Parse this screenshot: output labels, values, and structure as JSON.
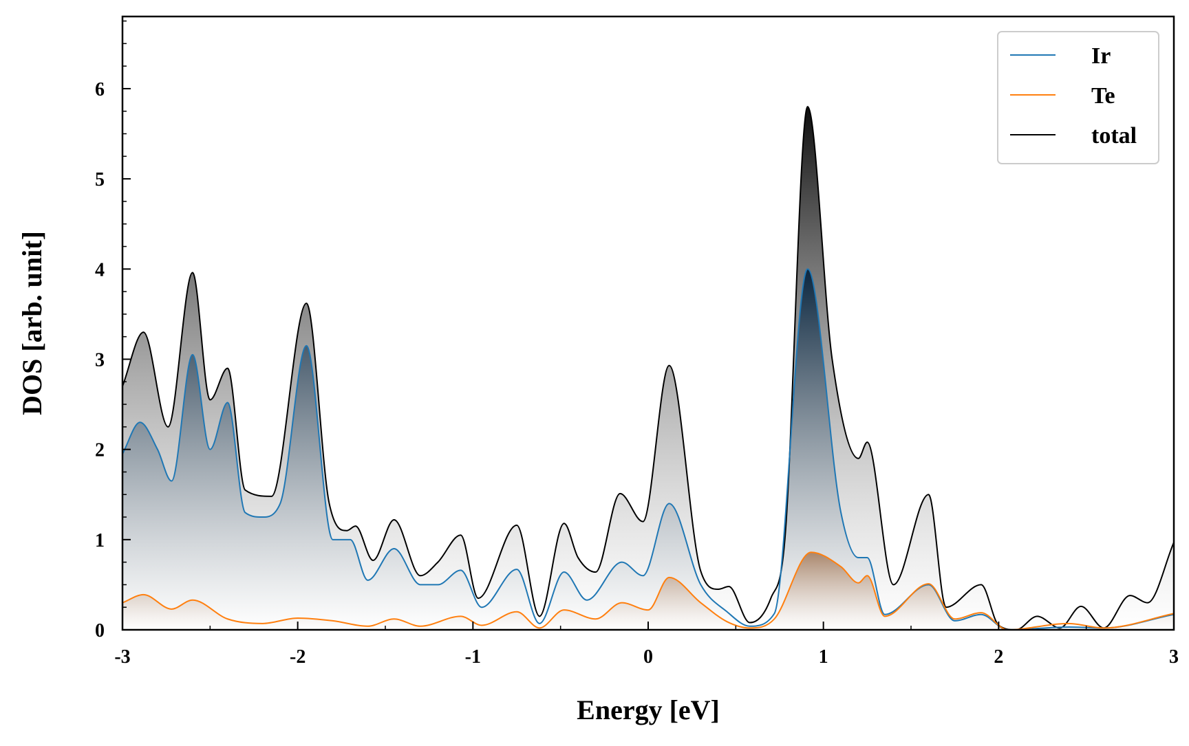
{
  "chart_data": {
    "type": "line",
    "title": "",
    "xlabel": "Energy [eV]",
    "ylabel": "DOS [arb. unit]",
    "xlim": [
      -3,
      3
    ],
    "ylim": [
      0,
      6.8
    ],
    "x_ticks": [
      -3,
      -2,
      -1,
      0,
      1,
      2,
      3
    ],
    "x_tick_labels": [
      "-3",
      "-2",
      "-1",
      "0",
      "1",
      "2",
      "3"
    ],
    "y_ticks": [
      0,
      1,
      2,
      3,
      4,
      5,
      6
    ],
    "y_tick_labels": [
      "0",
      "1",
      "2",
      "3",
      "4",
      "5",
      "6"
    ],
    "x_minor_step": 0.5,
    "y_minor_step": 0.25,
    "grid": false,
    "legend_position": "top-right",
    "series": [
      {
        "name": "Ir",
        "color": "#1f77b4",
        "fill": "blue-gradient",
        "x": [
          -3.0,
          -2.9,
          -2.8,
          -2.72,
          -2.6,
          -2.5,
          -2.4,
          -2.3,
          -2.2,
          -2.1,
          -1.95,
          -1.8,
          -1.7,
          -1.6,
          -1.45,
          -1.3,
          -1.2,
          -1.07,
          -0.95,
          -0.75,
          -0.62,
          -0.48,
          -0.35,
          -0.15,
          -0.03,
          0.12,
          0.3,
          0.45,
          0.58,
          0.72,
          0.91,
          1.1,
          1.2,
          1.25,
          1.35,
          1.6,
          1.75,
          1.9,
          2.05,
          2.4,
          2.6,
          3.0
        ],
        "y": [
          1.95,
          2.3,
          2.0,
          1.65,
          3.05,
          2.0,
          2.52,
          1.3,
          1.25,
          1.4,
          3.15,
          1.0,
          1.0,
          0.55,
          0.9,
          0.5,
          0.5,
          0.66,
          0.25,
          0.67,
          0.07,
          0.64,
          0.33,
          0.75,
          0.6,
          1.4,
          0.5,
          0.2,
          0.04,
          0.18,
          4.0,
          1.3,
          0.8,
          0.8,
          0.17,
          0.5,
          0.1,
          0.17,
          0.0,
          0.03,
          0.02,
          0.17
        ]
      },
      {
        "name": "Te",
        "color": "#ff7f0e",
        "fill": "orange-gradient",
        "x": [
          -3.0,
          -2.88,
          -2.72,
          -2.6,
          -2.4,
          -2.2,
          -2.0,
          -1.8,
          -1.6,
          -1.45,
          -1.3,
          -1.07,
          -0.95,
          -0.75,
          -0.62,
          -0.48,
          -0.3,
          -0.15,
          0.0,
          0.12,
          0.3,
          0.45,
          0.58,
          0.72,
          0.93,
          1.1,
          1.2,
          1.25,
          1.35,
          1.6,
          1.75,
          1.9,
          2.05,
          2.4,
          2.6,
          3.0
        ],
        "y": [
          0.3,
          0.39,
          0.23,
          0.33,
          0.12,
          0.07,
          0.13,
          0.1,
          0.04,
          0.12,
          0.04,
          0.15,
          0.05,
          0.2,
          0.02,
          0.22,
          0.12,
          0.3,
          0.22,
          0.58,
          0.3,
          0.09,
          0.02,
          0.12,
          0.86,
          0.7,
          0.52,
          0.6,
          0.15,
          0.51,
          0.12,
          0.19,
          0.0,
          0.07,
          0.02,
          0.18
        ]
      },
      {
        "name": "total",
        "color": "#000000",
        "fill": "gray-gradient",
        "x": [
          -3.0,
          -2.88,
          -2.74,
          -2.6,
          -2.5,
          -2.4,
          -2.3,
          -2.15,
          -1.95,
          -1.82,
          -1.72,
          -1.67,
          -1.57,
          -1.45,
          -1.3,
          -1.2,
          -1.07,
          -0.97,
          -0.75,
          -0.62,
          -0.48,
          -0.4,
          -0.3,
          -0.16,
          -0.03,
          0.12,
          0.3,
          0.4,
          0.46,
          0.58,
          0.7,
          0.78,
          0.91,
          1.05,
          1.2,
          1.25,
          1.4,
          1.6,
          1.7,
          1.9,
          2.0,
          2.1,
          2.22,
          2.35,
          2.47,
          2.6,
          2.75,
          2.85,
          3.0
        ],
        "y": [
          2.7,
          3.3,
          2.25,
          3.96,
          2.55,
          2.9,
          1.55,
          1.48,
          3.62,
          1.4,
          1.1,
          1.15,
          0.77,
          1.22,
          0.6,
          0.75,
          1.05,
          0.35,
          1.16,
          0.15,
          1.18,
          0.8,
          0.64,
          1.51,
          1.2,
          2.93,
          0.65,
          0.45,
          0.48,
          0.08,
          0.35,
          1.0,
          5.8,
          3.0,
          1.9,
          2.08,
          0.5,
          1.5,
          0.25,
          0.5,
          0.05,
          0.0,
          0.15,
          0.02,
          0.26,
          0.02,
          0.38,
          0.3,
          0.97
        ]
      }
    ]
  }
}
